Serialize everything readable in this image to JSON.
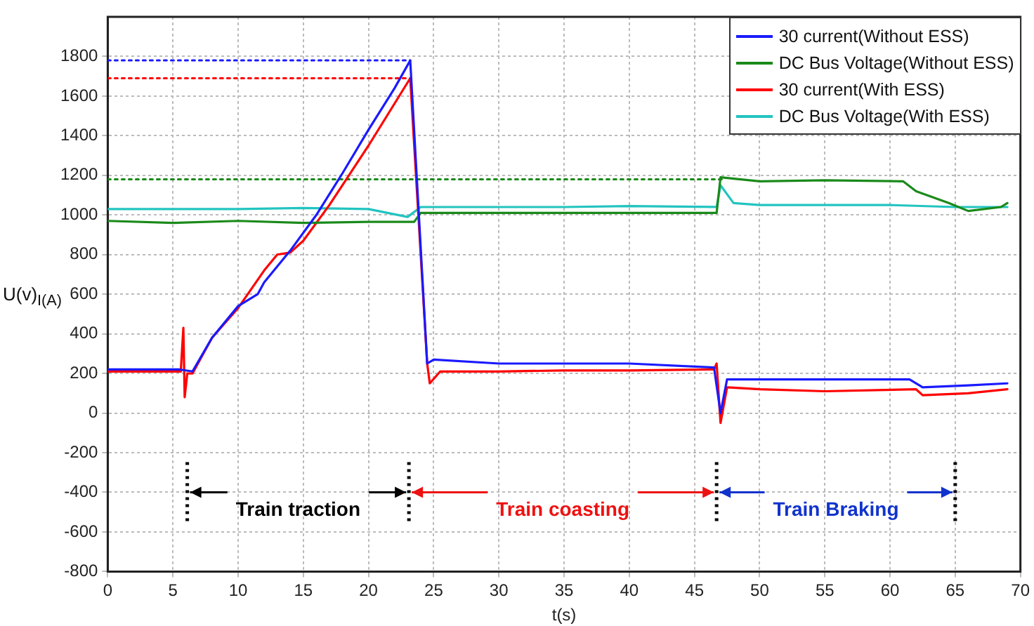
{
  "chart_data": {
    "type": "line",
    "xlabel": "t(s)",
    "ylabel": "U(v)$_{I(A)}$",
    "xlim": [
      0,
      70
    ],
    "xticks": [
      0,
      5,
      10,
      15,
      20,
      25,
      30,
      35,
      40,
      45,
      50,
      55,
      60,
      65,
      70
    ],
    "ylim": [
      -800,
      2000
    ],
    "yticks": [
      -800,
      -600,
      -400,
      -200,
      0,
      200,
      400,
      600,
      800,
      1000,
      1200,
      1400,
      1600,
      1800
    ],
    "grid": true,
    "legend": "top right",
    "marker": "none",
    "line_style": "solid",
    "series": [
      {
        "name": "30 current(Without ESS)",
        "color": "#1a1aff",
        "x": [
          0,
          5.5,
          6.5,
          8,
          10,
          11.5,
          12,
          14,
          16,
          18,
          20,
          22,
          23.2,
          24.5,
          25,
          30,
          35,
          40,
          46.5,
          47,
          47.5,
          50,
          55,
          61.5,
          62.5,
          66,
          69
        ],
        "values": [
          220,
          220,
          210,
          380,
          540,
          600,
          660,
          820,
          1000,
          1210,
          1430,
          1640,
          1780,
          250,
          270,
          250,
          250,
          250,
          230,
          0,
          170,
          170,
          170,
          170,
          130,
          140,
          150
        ]
      },
      {
        "name": "DC Bus Voltage(Without ESS)",
        "color": "#1a8a1a",
        "x": [
          0,
          5,
          10,
          15,
          20,
          23.5,
          24,
          30,
          35,
          40,
          46.7,
          47,
          50,
          55,
          61,
          62,
          64.5,
          66,
          68.5,
          69
        ],
        "values": [
          970,
          960,
          970,
          960,
          965,
          965,
          1010,
          1010,
          1010,
          1010,
          1010,
          1190,
          1170,
          1175,
          1170,
          1120,
          1060,
          1020,
          1040,
          1060
        ]
      },
      {
        "name": " 30 current(With ESS)",
        "color": "#ff0000",
        "x": [
          0,
          5.6,
          5.8,
          5.9,
          6.1,
          6.5,
          8,
          10,
          12,
          13,
          14,
          15,
          17,
          20,
          23.2,
          24.5,
          24.7,
          25.5,
          30,
          35,
          40,
          46.5,
          46.7,
          47,
          47.5,
          50,
          55,
          62,
          62.5,
          66,
          69
        ],
        "values": [
          210,
          210,
          430,
          80,
          200,
          200,
          380,
          530,
          720,
          800,
          810,
          870,
          1050,
          1350,
          1690,
          250,
          150,
          210,
          210,
          215,
          215,
          220,
          250,
          -50,
          130,
          120,
          110,
          120,
          90,
          100,
          120
        ]
      },
      {
        "name": "DC Bus Voltage(With ESS)",
        "color": "#22c4c0",
        "x": [
          0,
          5,
          10,
          15,
          20,
          23,
          24,
          30,
          35,
          40,
          46.7,
          47,
          48,
          50,
          55,
          60,
          65,
          69
        ],
        "values": [
          1030,
          1030,
          1030,
          1035,
          1030,
          990,
          1040,
          1040,
          1040,
          1045,
          1040,
          1150,
          1060,
          1050,
          1050,
          1050,
          1040,
          1040
        ]
      },
      {
        "color": "#1a1aff",
        "line_style": "dotted",
        "x": [
          0,
          23.2
        ],
        "values": [
          1780,
          1780
        ]
      },
      {
        "color": "#ff0000",
        "line_style": "dotted",
        "x": [
          0,
          23.2
        ],
        "values": [
          1690,
          1690
        ]
      },
      {
        "color": "#1a8a1a",
        "line_style": "dotted",
        "x": [
          0,
          47.2
        ],
        "values": [
          1180,
          1180
        ]
      }
    ],
    "ref_lines": [
      {
        "axis": "x",
        "value": 6.1,
        "color": "#000000",
        "line_style": "dotted"
      },
      {
        "axis": "x",
        "value": 23.1,
        "color": "#000000",
        "line_style": "dotted"
      },
      {
        "axis": "x",
        "value": 46.7,
        "color": "#000000",
        "line_style": "dotted"
      },
      {
        "axis": "x",
        "value": 65,
        "color": "#000000",
        "line_style": "dotted"
      }
    ],
    "annotations": [
      {
        "text": "Train traction",
        "x": 6.1,
        "y": -400
      },
      {
        "text": "Train coasting",
        "x": 23.1,
        "y": -400
      },
      {
        "text": "Train Braking",
        "x": 46.7,
        "y": -400
      }
    ]
  }
}
